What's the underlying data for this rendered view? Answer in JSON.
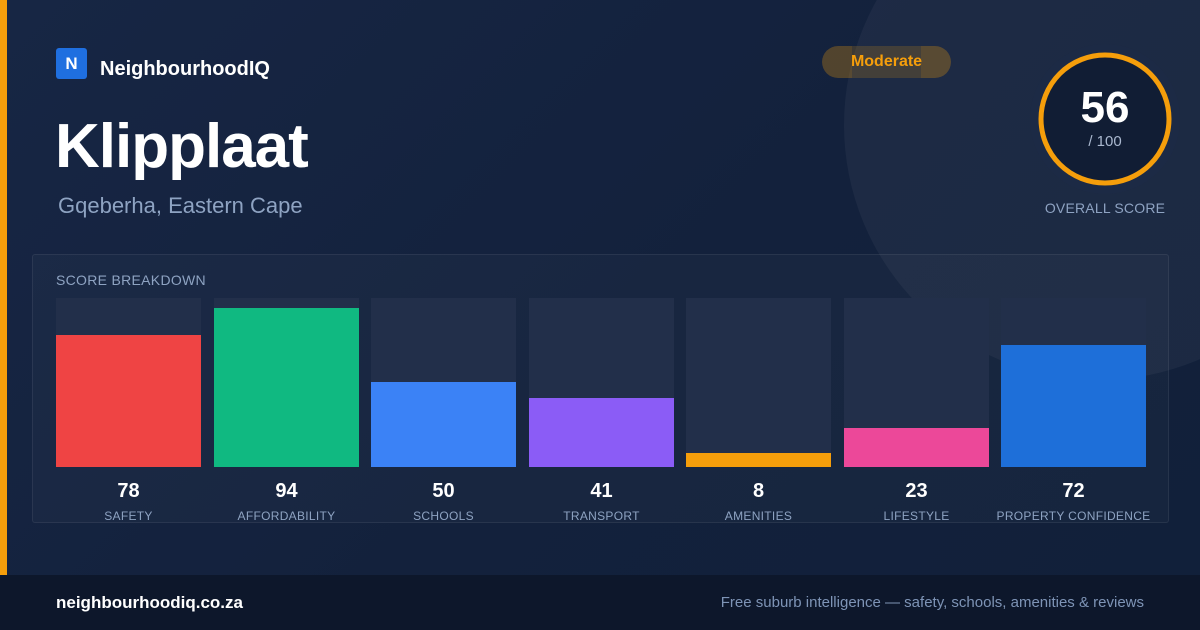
{
  "brand": {
    "logo_letter": "N",
    "name": "NeighbourhoodIQ",
    "accent_color": "#f59e0b",
    "logo_color": "#1f6fe0"
  },
  "suburb": {
    "name": "Klipplaat",
    "location": "Gqeberha, Eastern Cape"
  },
  "badge": {
    "label": "Moderate",
    "color": "#f59e0b"
  },
  "overall": {
    "score": "56",
    "max_label": "/ 100",
    "score_fraction": 0.56,
    "caption": "OVERALL SCORE"
  },
  "breakdown": {
    "title": "SCORE BREAKDOWN"
  },
  "chart_data": {
    "type": "bar",
    "title": "SCORE BREAKDOWN",
    "categories": [
      "SAFETY",
      "AFFORDABILITY",
      "SCHOOLS",
      "TRANSPORT",
      "AMENITIES",
      "LIFESTYLE",
      "PROPERTY CONFIDENCE"
    ],
    "values": [
      78,
      94,
      50,
      41,
      8,
      23,
      72
    ],
    "colors": [
      "#ef4444",
      "#10b981",
      "#3b82f6",
      "#8b5cf6",
      "#f59e0b",
      "#ec4899",
      "#1e6fd9"
    ],
    "ylim": [
      0,
      100
    ]
  },
  "footer": {
    "domain": "neighbourhoodiq.co.za",
    "tagline": "Free suburb intelligence — safety, schools, amenities & reviews"
  }
}
